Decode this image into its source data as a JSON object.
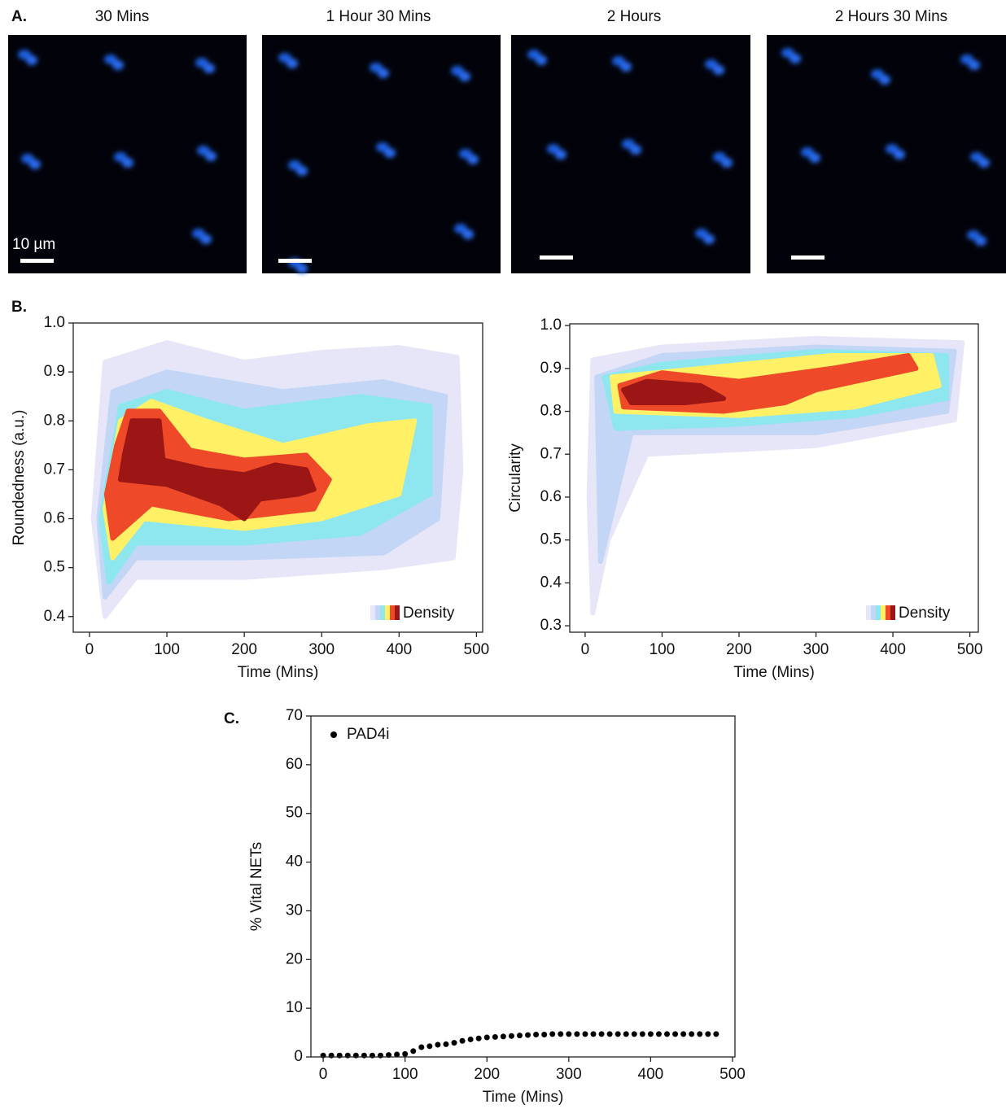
{
  "panels": {
    "a": {
      "label": "A.",
      "titles": [
        "30 Mins",
        "1 Hour 30 Mins",
        "2 Hours",
        "2 Hours 30 Mins"
      ],
      "scale_label": "10 µm"
    },
    "b": {
      "label": "B."
    },
    "c": {
      "label": "C."
    }
  },
  "chart_data": [
    {
      "type": "contour",
      "xlabel": "Time (Mins)",
      "ylabel": "Roundedness (a.u.)",
      "xlim": [
        -21,
        508
      ],
      "ylim": [
        0.368,
        1.0
      ],
      "xticks": [
        0,
        100,
        200,
        300,
        400,
        500
      ],
      "yticks": [
        0.4,
        0.5,
        0.6,
        0.7,
        0.8,
        0.9,
        {
          "value": 1,
          "label": "1.0"
        }
      ],
      "legend_label": "Density",
      "levels": [
        {
          "color": "#e6e6f8",
          "x": [
            20,
            60,
            200,
            380,
            470,
            480,
            475,
            400,
            300,
            200,
            100,
            20,
            5
          ],
          "y": [
            0.4,
            0.48,
            0.48,
            0.5,
            0.52,
            0.7,
            0.93,
            0.95,
            0.94,
            0.92,
            0.96,
            0.92,
            0.6
          ]
        },
        {
          "color": "#c4d6f6",
          "x": [
            20,
            60,
            200,
            380,
            450,
            460,
            380,
            250,
            100,
            30,
            12
          ],
          "y": [
            0.44,
            0.52,
            0.52,
            0.53,
            0.6,
            0.85,
            0.88,
            0.86,
            0.9,
            0.86,
            0.6
          ]
        },
        {
          "color": "#8ee6ee",
          "x": [
            25,
            60,
            200,
            350,
            440,
            440,
            350,
            200,
            100,
            40,
            15
          ],
          "y": [
            0.47,
            0.55,
            0.55,
            0.57,
            0.65,
            0.83,
            0.85,
            0.82,
            0.86,
            0.83,
            0.6
          ]
        },
        {
          "color": "#fff066",
          "x": [
            30,
            70,
            200,
            300,
            400,
            420,
            360,
            250,
            150,
            80,
            40,
            20
          ],
          "y": [
            0.52,
            0.6,
            0.58,
            0.6,
            0.65,
            0.8,
            0.79,
            0.75,
            0.8,
            0.84,
            0.8,
            0.62
          ]
        },
        {
          "color": "#ee4a2a",
          "x": [
            30,
            80,
            180,
            290,
            310,
            280,
            200,
            130,
            90,
            50,
            35,
            22
          ],
          "y": [
            0.56,
            0.63,
            0.6,
            0.62,
            0.68,
            0.73,
            0.72,
            0.74,
            0.82,
            0.82,
            0.75,
            0.65
          ]
        },
        {
          "color": "#9c1616",
          "x": [
            40,
            100,
            170,
            200,
            220,
            270,
            290,
            280,
            240,
            200,
            150,
            95,
            90,
            55,
            45
          ],
          "y": [
            0.68,
            0.67,
            0.63,
            0.6,
            0.64,
            0.65,
            0.66,
            0.7,
            0.71,
            0.69,
            0.7,
            0.72,
            0.8,
            0.8,
            0.73
          ]
        }
      ]
    },
    {
      "type": "contour",
      "xlabel": "Time (Mins)",
      "ylabel": "Circularity",
      "xlim": [
        -20,
        511
      ],
      "ylim": [
        0.285,
        1.004
      ],
      "xticks": [
        0,
        100,
        200,
        300,
        400,
        500
      ],
      "yticks": [
        0.3,
        0.4,
        0.5,
        0.6,
        0.7,
        0.8,
        0.9,
        {
          "value": 1,
          "label": "1.0"
        }
      ],
      "legend_label": "Density",
      "levels": [
        {
          "color": "#e6e6f8",
          "x": [
            10,
            30,
            80,
            300,
            480,
            490,
            300,
            100,
            10,
            5
          ],
          "y": [
            0.33,
            0.5,
            0.7,
            0.72,
            0.78,
            0.96,
            0.97,
            0.95,
            0.92,
            0.6
          ]
        },
        {
          "color": "#c4d6f6",
          "x": [
            20,
            60,
            300,
            470,
            480,
            300,
            100,
            15
          ],
          "y": [
            0.45,
            0.75,
            0.75,
            0.8,
            0.94,
            0.95,
            0.93,
            0.88
          ]
        },
        {
          "color": "#8ee6ee",
          "x": [
            40,
            200,
            350,
            470,
            470,
            300,
            100,
            25
          ],
          "y": [
            0.76,
            0.77,
            0.79,
            0.83,
            0.93,
            0.94,
            0.91,
            0.88
          ]
        },
        {
          "color": "#fff066",
          "x": [
            40,
            200,
            350,
            460,
            450,
            320,
            150,
            35
          ],
          "y": [
            0.8,
            0.79,
            0.81,
            0.86,
            0.93,
            0.93,
            0.9,
            0.88
          ]
        },
        {
          "color": "#ee4a2a",
          "x": [
            50,
            180,
            260,
            300,
            430,
            420,
            320,
            200,
            100,
            45
          ],
          "y": [
            0.81,
            0.8,
            0.82,
            0.85,
            0.9,
            0.93,
            0.9,
            0.87,
            0.89,
            0.86
          ]
        },
        {
          "color": "#9c1616",
          "x": [
            60,
            130,
            180,
            150,
            80,
            50
          ],
          "y": [
            0.82,
            0.82,
            0.83,
            0.86,
            0.87,
            0.85
          ]
        }
      ]
    },
    {
      "type": "scatter",
      "xlabel": "Time (Mins)",
      "ylabel": "% Vital NETs",
      "xlim": [
        -15,
        503
      ],
      "ylim": [
        0,
        70
      ],
      "xticks": [
        0,
        100,
        200,
        300,
        400,
        500
      ],
      "yticks": [
        0,
        10,
        20,
        30,
        40,
        50,
        60,
        70
      ],
      "series": [
        {
          "name": "PAD4i",
          "color": "#000000",
          "x": [
            0,
            10,
            20,
            30,
            40,
            50,
            60,
            70,
            80,
            90,
            100,
            110,
            120,
            130,
            140,
            150,
            160,
            170,
            180,
            190,
            200,
            210,
            220,
            230,
            240,
            250,
            260,
            270,
            280,
            290,
            300,
            310,
            320,
            330,
            340,
            350,
            360,
            370,
            380,
            390,
            400,
            410,
            420,
            430,
            440,
            450,
            460,
            470,
            480
          ],
          "values": [
            0.3,
            0.3,
            0.3,
            0.3,
            0.3,
            0.3,
            0.3,
            0.3,
            0.4,
            0.5,
            0.6,
            1.2,
            2.0,
            2.2,
            2.5,
            2.6,
            2.9,
            3.3,
            3.6,
            3.8,
            4.0,
            4.1,
            4.2,
            4.3,
            4.4,
            4.5,
            4.6,
            4.6,
            4.7,
            4.7,
            4.7,
            4.7,
            4.7,
            4.7,
            4.7,
            4.7,
            4.7,
            4.7,
            4.7,
            4.7,
            4.7,
            4.7,
            4.7,
            4.7,
            4.7,
            4.7,
            4.7,
            4.7,
            4.7
          ]
        }
      ]
    }
  ]
}
